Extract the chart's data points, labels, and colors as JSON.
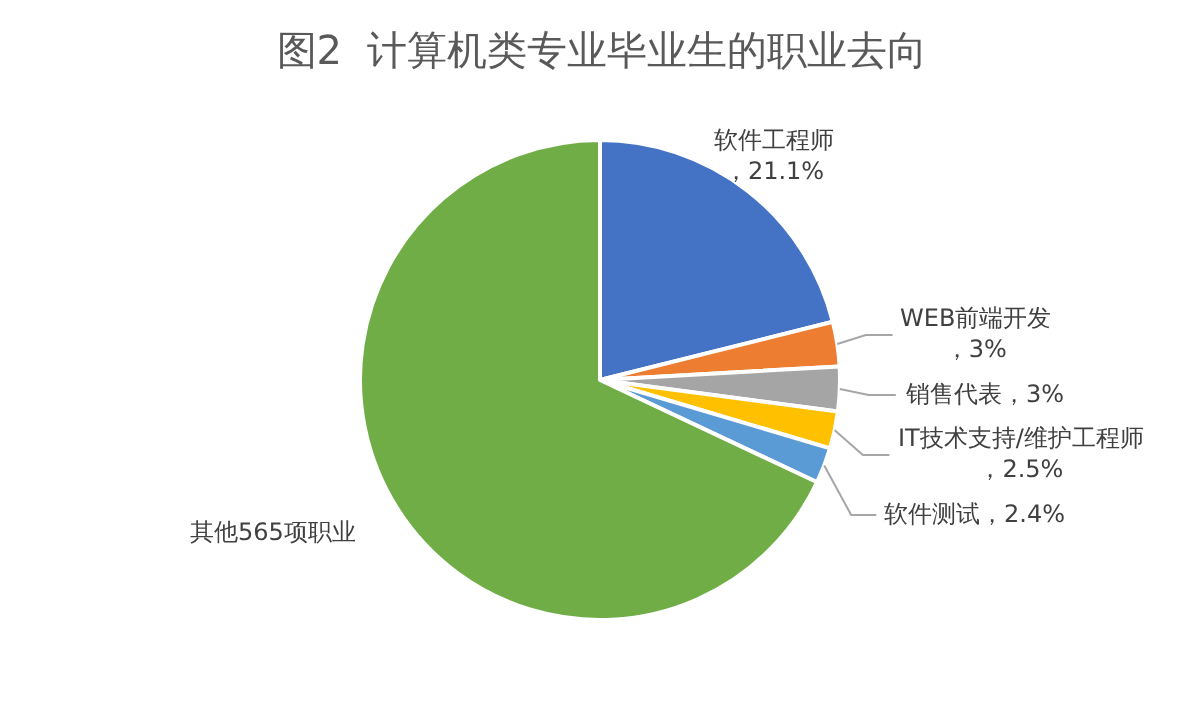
{
  "chart_data": {
    "type": "pie",
    "title": "图2  计算机类专业毕业生的职业去向",
    "categories": [
      "软件工程师",
      "WEB前端开发",
      "销售代表",
      "IT技术支持/维护工程师",
      "软件测试",
      "其他565项职业"
    ],
    "values": [
      21.1,
      3,
      3,
      2.5,
      2.4,
      68.0
    ],
    "value_labels": [
      "，21.1%",
      "，3%",
      "，3%",
      "，2.5%",
      "，2.4%",
      null
    ],
    "colors": [
      "#4472c4",
      "#ed7d31",
      "#a5a5a5",
      "#ffc000",
      "#5b9bd5",
      "#70ad47"
    ],
    "legend": false
  }
}
